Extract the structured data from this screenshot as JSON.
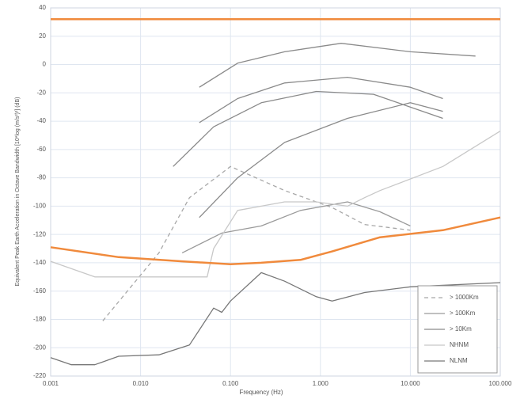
{
  "chart_data": {
    "type": "line",
    "x_label": "Frequency (Hz)",
    "y_label": "Equivalent Peak Earth Acceleration in Octave Bandwidth [10*log (m/s²)²] (dB)",
    "xscale": "log",
    "xlim": [
      0.001,
      100
    ],
    "xticks": [
      {
        "value": 0.001,
        "label": "0.001"
      },
      {
        "value": 0.01,
        "label": "0.010"
      },
      {
        "value": 0.1,
        "label": "0.100"
      },
      {
        "value": 1,
        "label": "1.000"
      },
      {
        "value": 10,
        "label": "10.000"
      },
      {
        "value": 100,
        "label": "100.000"
      }
    ],
    "ylim": [
      -220,
      40
    ],
    "yticks": [
      40,
      20,
      0,
      -20,
      -40,
      -60,
      -80,
      -100,
      -120,
      -140,
      -160,
      -180,
      -200,
      -220
    ],
    "grid": true,
    "legend": "bottom-right",
    "series": [
      {
        "name": "> 1000Km",
        "color": "#a8a8a8",
        "style": "dashed",
        "x": [
          0.0038,
          0.016,
          0.035,
          0.1,
          0.4,
          1.35,
          3.1,
          10
        ],
        "values": [
          -181,
          -133,
          -94,
          -72,
          -89,
          -101,
          -113,
          -117
        ]
      },
      {
        "name": "> 100Km",
        "color": "#9a9a9a",
        "style": "solid",
        "x": [
          0.029,
          0.08,
          0.22,
          0.6,
          2,
          4.6,
          10
        ],
        "values": [
          -133,
          -119,
          -114,
          -103,
          -97,
          -104,
          -114
        ]
      },
      {
        "name": "> 10Km",
        "color": "#8a8a8a",
        "style": "solid",
        "x": [
          0.045,
          0.12,
          0.4,
          1.7,
          10,
          53,
          null,
          0.045,
          0.12,
          0.4,
          2,
          10,
          23,
          null,
          0.023,
          0.065,
          0.22,
          0.9,
          3.9,
          23,
          null,
          0.045,
          0.12,
          0.4,
          2,
          10,
          23
        ],
        "values": [
          -16,
          1,
          9,
          15,
          9,
          6,
          null,
          -41,
          -24,
          -13,
          -9,
          -16,
          -24,
          null,
          -72,
          -44,
          -27,
          -19,
          -21,
          -38,
          null,
          -108,
          -80,
          -55,
          -38,
          -27,
          -33
        ]
      },
      {
        "name": "NHNM",
        "color": "#c8c8c8",
        "style": "solid",
        "x": [
          0.001,
          0.0031,
          0.055,
          0.065,
          0.12,
          0.22,
          0.4,
          0.9,
          2,
          3.1,
          4.6,
          23,
          100
        ],
        "values": [
          -139,
          -150,
          -150,
          -130,
          -103,
          -100,
          -97,
          -97,
          -100,
          -94,
          -89,
          -72,
          -47
        ]
      },
      {
        "name": "NLNM",
        "color": "#777777",
        "style": "solid",
        "x": [
          0.001,
          0.0017,
          0.0031,
          0.0057,
          0.016,
          0.035,
          0.065,
          0.08,
          0.1,
          0.22,
          0.4,
          0.9,
          1.35,
          3.1,
          10,
          100
        ],
        "values": [
          -207,
          -212,
          -212,
          -206,
          -205,
          -198,
          -172,
          -175,
          -167,
          -147,
          -153,
          -164,
          -167,
          -161,
          -157,
          -154
        ]
      },
      {
        "color": "#f08a3c",
        "style": "thick",
        "x": [
          0.001,
          100
        ],
        "values": [
          32,
          32
        ]
      },
      {
        "color": "#f08a3c",
        "style": "thick",
        "x": [
          0.001,
          0.0057,
          0.029,
          0.1,
          0.22,
          0.6,
          1.35,
          4.6,
          23,
          100
        ],
        "values": [
          -129,
          -136,
          -139,
          -141,
          -140,
          -138,
          -132,
          -122,
          -117,
          -108
        ]
      }
    ]
  }
}
